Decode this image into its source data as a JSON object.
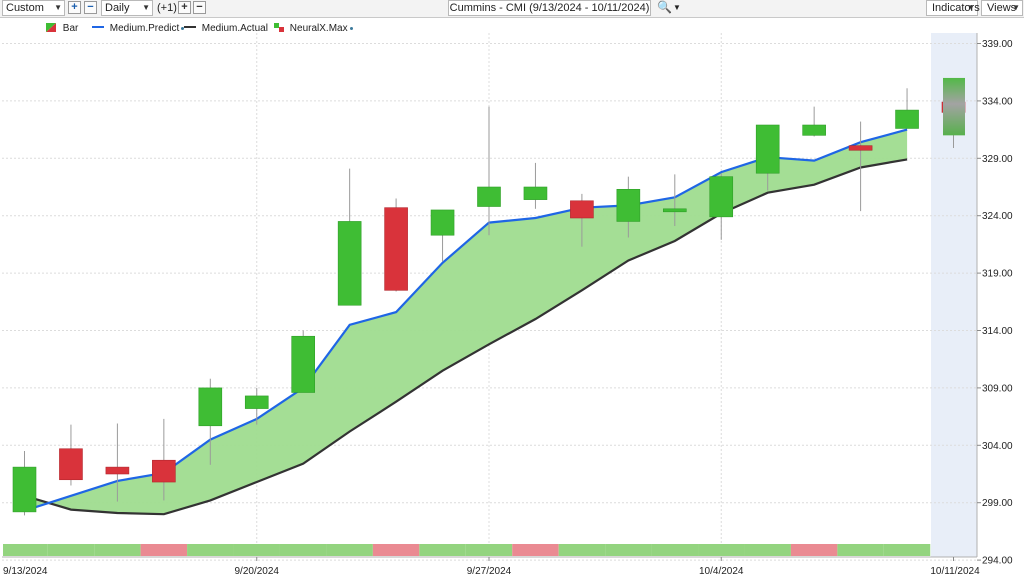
{
  "toolbar": {
    "range_select": "Custom",
    "interval_select": "Daily",
    "offset_label": "(+1)",
    "symbol_title": "Cummins - CMI (9/13/2024 - 10/11/2024)",
    "indicators_label": "Indicators",
    "views_label": "Views",
    "plus": "+",
    "minus": "−"
  },
  "legend": {
    "bar": "Bar",
    "medium_predict": "Medium.Predict",
    "medium_actual": "Medium.Actual",
    "neuralx_max": "NeuralX.Max"
  },
  "colors": {
    "up": "#3fbd34",
    "down": "#d9333b",
    "predict": "#1f66e5",
    "actual": "#333333",
    "fill": "#9fdc8f",
    "signal_up": "#93d47f",
    "signal_down": "#ea8a92",
    "forecast_bg": "#e8eef8"
  },
  "chart_data": {
    "type": "candlestick",
    "ylim": [
      294,
      339
    ],
    "yticks": [
      "339.00",
      "334.00",
      "329.00",
      "324.00",
      "319.00",
      "314.00",
      "309.00",
      "304.00",
      "299.00",
      "294.00"
    ],
    "xtick_labels": [
      {
        "label": "9/13/2024",
        "index": 0
      },
      {
        "label": "9/20/2024",
        "index": 5
      },
      {
        "label": "9/27/2024",
        "index": 10
      },
      {
        "label": "10/4/2024",
        "index": 15
      },
      {
        "label": "10/11/2024",
        "index": 20
      }
    ],
    "candles": [
      {
        "o": 298.2,
        "h": 303.5,
        "l": 297.9,
        "c": 302.1
      },
      {
        "o": 303.7,
        "h": 305.8,
        "l": 300.5,
        "c": 301.0
      },
      {
        "o": 302.1,
        "h": 305.9,
        "l": 299.1,
        "c": 301.5
      },
      {
        "o": 302.7,
        "h": 306.3,
        "l": 299.2,
        "c": 300.8
      },
      {
        "o": 305.7,
        "h": 309.8,
        "l": 302.3,
        "c": 309.0
      },
      {
        "o": 307.2,
        "h": 309.0,
        "l": 305.8,
        "c": 308.3
      },
      {
        "o": 308.6,
        "h": 314.0,
        "l": 308.6,
        "c": 313.5
      },
      {
        "o": 316.2,
        "h": 328.1,
        "l": 316.2,
        "c": 323.5
      },
      {
        "o": 324.7,
        "h": 325.5,
        "l": 317.4,
        "c": 317.5
      },
      {
        "o": 322.3,
        "h": 324.5,
        "l": 320.0,
        "c": 324.5
      },
      {
        "o": 324.8,
        "h": 333.5,
        "l": 322.3,
        "c": 326.5
      },
      {
        "o": 325.4,
        "h": 328.6,
        "l": 324.6,
        "c": 326.5
      },
      {
        "o": 325.3,
        "h": 325.9,
        "l": 321.3,
        "c": 323.8
      },
      {
        "o": 323.5,
        "h": 327.4,
        "l": 322.1,
        "c": 326.3
      },
      {
        "o": 324.6,
        "h": 327.6,
        "l": 323.1,
        "c": 324.6
      },
      {
        "o": 323.9,
        "h": 327.7,
        "l": 321.9,
        "c": 327.4
      },
      {
        "o": 327.7,
        "h": 331.9,
        "l": 326.2,
        "c": 331.9
      },
      {
        "o": 331.0,
        "h": 333.5,
        "l": 330.9,
        "c": 331.9
      },
      {
        "o": 330.1,
        "h": 332.2,
        "l": 324.4,
        "c": 329.7
      },
      {
        "o": 331.6,
        "h": 335.1,
        "l": 331.6,
        "c": 333.2
      },
      {
        "o": 333.9,
        "h": 334.2,
        "l": 329.9,
        "c": 333.0
      }
    ],
    "medium_predict": [
      298.3,
      299.6,
      300.9,
      301.6,
      304.5,
      306.3,
      309.0,
      314.5,
      315.6,
      319.9,
      323.4,
      323.8,
      324.7,
      324.9,
      325.6,
      327.8,
      329.1,
      328.8,
      330.4,
      331.5
    ],
    "medium_actual": [
      299.6,
      298.4,
      298.1,
      298.0,
      299.2,
      300.8,
      302.4,
      305.2,
      307.8,
      310.5,
      312.8,
      315.0,
      317.5,
      320.1,
      321.8,
      324.2,
      326.0,
      326.7,
      328.2,
      328.9
    ],
    "forecast": {
      "low": 331.0,
      "high": 336.0
    },
    "signals": [
      "up",
      "up",
      "up",
      "down",
      "up",
      "up",
      "up",
      "up",
      "down",
      "up",
      "up",
      "down",
      "up",
      "up",
      "up",
      "up",
      "up",
      "down",
      "up",
      "up"
    ]
  }
}
